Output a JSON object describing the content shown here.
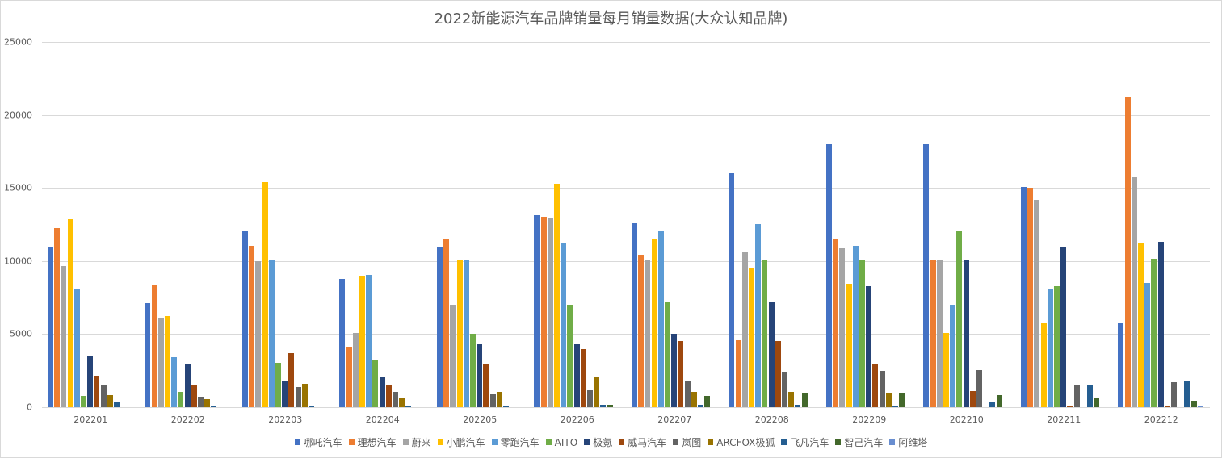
{
  "chart_data": {
    "type": "bar",
    "title": "2022新能源汽车品牌销量每月销量数据(大众认知品牌)",
    "xlabel": "",
    "ylabel": "",
    "ylim": [
      0,
      25000
    ],
    "yticks": [
      0,
      5000,
      10000,
      15000,
      20000,
      25000
    ],
    "grid": true,
    "legend_position": "bottom",
    "categories": [
      "202201",
      "202202",
      "202203",
      "202204",
      "202205",
      "202206",
      "202207",
      "202208",
      "202209",
      "202210",
      "202211",
      "202212"
    ],
    "series": [
      {
        "name": "哪吒汽车",
        "color": "#4472C4",
        "values": [
          11000,
          7120,
          12030,
          8770,
          10980,
          13130,
          12640,
          16000,
          17990,
          17990,
          15070,
          5790
        ]
      },
      {
        "name": "理想汽车",
        "color": "#ED7D31",
        "values": [
          12270,
          8390,
          11040,
          4140,
          11480,
          13020,
          10430,
          4580,
          11530,
          10040,
          15010,
          21250
        ]
      },
      {
        "name": "蔚来",
        "color": "#A5A5A5",
        "values": [
          9660,
          6130,
          9990,
          5080,
          7010,
          12970,
          10040,
          10650,
          10870,
          10040,
          14180,
          15780
        ]
      },
      {
        "name": "小鹏汽车",
        "color": "#FFC000",
        "values": [
          12910,
          6240,
          15400,
          9000,
          10100,
          15290,
          11530,
          9550,
          8440,
          5080,
          5790,
          11260
        ]
      },
      {
        "name": "零跑汽车",
        "color": "#5B9BD5",
        "values": [
          8060,
          3420,
          10040,
          9050,
          10040,
          11260,
          12030,
          12530,
          11040,
          7010,
          8060,
          8500
        ]
      },
      {
        "name": "AITO",
        "color": "#70AD47",
        "values": [
          770,
          1050,
          3040,
          3200,
          5020,
          7010,
          7230,
          10040,
          10100,
          12030,
          8280,
          10150
        ]
      },
      {
        "name": "极氪",
        "color": "#264478",
        "values": [
          3530,
          2920,
          1770,
          2100,
          4300,
          4300,
          5020,
          7170,
          8280,
          10100,
          10980,
          11310
        ]
      },
      {
        "name": "威马汽车",
        "color": "#9E480E",
        "values": [
          2150,
          1545,
          3700,
          1490,
          2980,
          3970,
          4530,
          4530,
          2980,
          1100,
          110,
          55
        ]
      },
      {
        "name": "岚图",
        "color": "#636363",
        "values": [
          1545,
          720,
          1380,
          1050,
          880,
          1160,
          1770,
          2430,
          2480,
          2540,
          1490,
          1710
        ]
      },
      {
        "name": "ARCFOX极狐",
        "color": "#997300",
        "values": [
          830,
          550,
          1600,
          610,
          1050,
          2040,
          1050,
          1050,
          990,
          0,
          0,
          0
        ]
      },
      {
        "name": "飞凡汽车",
        "color": "#255E91",
        "values": [
          390,
          110,
          110,
          55,
          55,
          165,
          165,
          165,
          110,
          390,
          1490,
          1770
        ]
      },
      {
        "name": "智己汽车",
        "color": "#43682B",
        "values": [
          0,
          0,
          0,
          0,
          0,
          165,
          770,
          990,
          990,
          830,
          610,
          440
        ]
      },
      {
        "name": "阿维塔",
        "color": "#698ED0",
        "values": [
          0,
          0,
          0,
          0,
          0,
          0,
          0,
          0,
          0,
          0,
          0,
          55
        ]
      }
    ]
  }
}
